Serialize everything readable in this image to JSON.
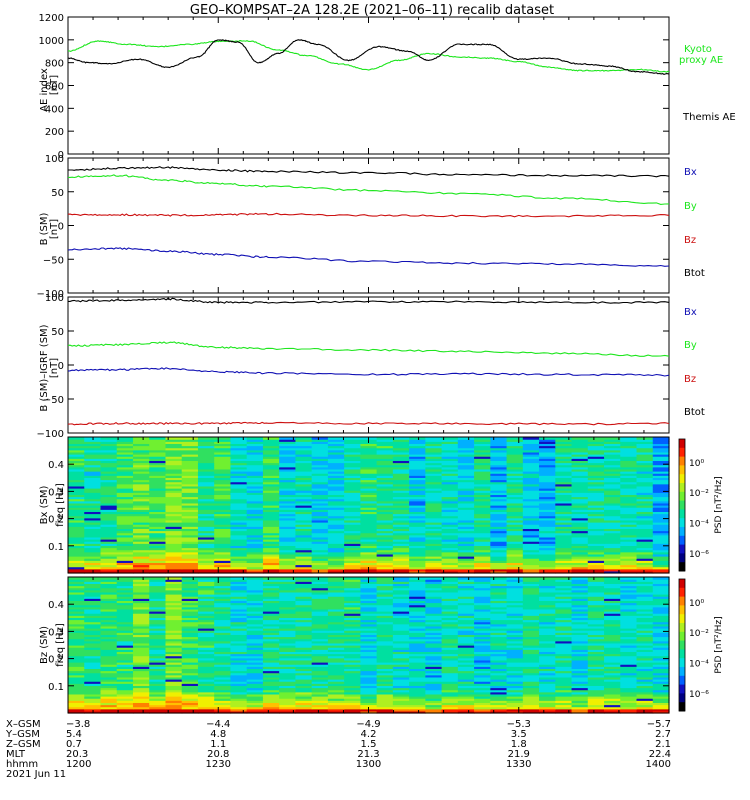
{
  "title": "GEO–KOMPSAT–2A 128.2E (2021–06–11) recalib dataset",
  "colors": {
    "black": "#000000",
    "green": "#1ee61e",
    "red": "#cc1010",
    "blue": "#1010b4"
  },
  "chart_data": [
    {
      "type": "line",
      "ylabel": "AE index [nT]",
      "ylim": [
        0,
        1200
      ],
      "yticks": [
        0,
        200,
        400,
        600,
        800,
        1000,
        1200
      ],
      "xlim_hhmm": [
        "1200",
        "1400"
      ],
      "series": [
        {
          "name": "Kyoto proxy AE",
          "color": "green",
          "x": [
            0,
            6,
            12,
            18,
            24,
            30,
            36,
            42,
            48,
            54,
            60,
            66,
            72,
            78,
            84,
            90,
            96,
            102,
            108,
            114,
            120
          ],
          "y": [
            900,
            990,
            960,
            940,
            960,
            985,
            990,
            910,
            860,
            790,
            740,
            820,
            880,
            850,
            840,
            810,
            760,
            730,
            730,
            740,
            720
          ]
        },
        {
          "name": "Themis AE",
          "color": "black",
          "x": [
            0,
            4,
            8,
            14,
            20,
            26,
            30,
            34,
            38,
            42,
            46,
            50,
            56,
            62,
            68,
            72,
            78,
            84,
            90,
            96,
            102,
            108,
            114,
            120
          ],
          "y": [
            840,
            800,
            790,
            830,
            760,
            850,
            1000,
            980,
            800,
            880,
            1000,
            960,
            820,
            940,
            900,
            820,
            960,
            960,
            830,
            840,
            790,
            770,
            720,
            700
          ]
        }
      ]
    },
    {
      "type": "line",
      "ylabel": "B (SM) [nT]",
      "ylim": [
        -100,
        100
      ],
      "yticks": [
        -100,
        -50,
        0,
        50,
        100
      ],
      "series": [
        {
          "name": "Bx",
          "color": "black",
          "x": [
            0,
            10,
            20,
            30,
            40,
            60,
            80,
            100,
            120
          ],
          "y": [
            82,
            85,
            86,
            82,
            80,
            78,
            75,
            74,
            73
          ]
        },
        {
          "name": "By",
          "color": "green",
          "x": [
            0,
            10,
            20,
            30,
            40,
            60,
            80,
            100,
            120
          ],
          "y": [
            72,
            74,
            67,
            62,
            58,
            52,
            47,
            40,
            32
          ]
        },
        {
          "name": "Bz",
          "color": "red",
          "x": [
            0,
            10,
            20,
            30,
            40,
            60,
            80,
            100,
            120
          ],
          "y": [
            16,
            16,
            15,
            16,
            17,
            15,
            14,
            14,
            15
          ]
        },
        {
          "name": "Btot",
          "color": "blue",
          "x": [
            0,
            10,
            20,
            30,
            40,
            60,
            80,
            100,
            120
          ],
          "y": [
            -36,
            -34,
            -38,
            -43,
            -47,
            -53,
            -56,
            -57,
            -60
          ]
        }
      ]
    },
    {
      "type": "line",
      "ylabel": "B (SM)–IGRF (SM) [nT]",
      "ylim": [
        -100,
        100
      ],
      "yticks": [
        -100,
        -50,
        0,
        50,
        100
      ],
      "series": [
        {
          "name": "Bx",
          "color": "black",
          "x": [
            0,
            10,
            20,
            30,
            40,
            60,
            80,
            100,
            120
          ],
          "y": [
            94,
            95,
            97,
            92,
            92,
            93,
            93,
            92,
            92
          ]
        },
        {
          "name": "By",
          "color": "green",
          "x": [
            0,
            10,
            20,
            30,
            40,
            60,
            80,
            100,
            120
          ],
          "y": [
            28,
            30,
            33,
            26,
            24,
            22,
            20,
            17,
            13
          ]
        },
        {
          "name": "Bz",
          "color": "red",
          "x": [
            0,
            10,
            20,
            30,
            40,
            60,
            80,
            100,
            120
          ],
          "y": [
            -87,
            -86,
            -86,
            -86,
            -85,
            -86,
            -86,
            -87,
            -86
          ]
        },
        {
          "name": "Btot",
          "color": "blue",
          "x": [
            0,
            10,
            20,
            30,
            40,
            60,
            80,
            100,
            120
          ],
          "y": [
            -8,
            -7,
            -5,
            -10,
            -12,
            -14,
            -13,
            -14,
            -15
          ]
        }
      ]
    },
    {
      "type": "heatmap",
      "ylabel": "Bx (SM) freq [Hz]",
      "ylim": [
        0,
        0.5
      ],
      "yticks": [
        0.1,
        0.2,
        0.3,
        0.4
      ],
      "colorbar_label": "PSD [nT²/Hz]",
      "colorbar_ticks": [
        "10⁰",
        "10⁻²",
        "10⁻⁴",
        "10⁻⁶"
      ],
      "colorbar_exponents": [
        0,
        -2,
        -4,
        -6
      ],
      "seed": 7
    },
    {
      "type": "heatmap",
      "ylabel": "Bz (SM) freq [Hz]",
      "ylim": [
        0,
        0.5
      ],
      "yticks": [
        0.1,
        0.2,
        0.3,
        0.4
      ],
      "colorbar_label": "PSD [nT²/Hz]",
      "colorbar_ticks": [
        "10⁰",
        "10⁻²",
        "10⁻⁴",
        "10⁻⁶"
      ],
      "colorbar_exponents": [
        0,
        -2,
        -4,
        -6
      ],
      "seed": 19
    }
  ],
  "legend_panel1": {
    "kyoto_line1": "Kyoto",
    "kyoto_line2": "proxy AE",
    "themis": "Themis AE"
  },
  "legend_b": [
    "Bx",
    "By",
    "Bz",
    "Btot"
  ],
  "axis_labels": {
    "ae": [
      "AE index",
      "[nT]"
    ],
    "b": [
      "B (SM)",
      "[nT]"
    ],
    "dbm": [
      "B (SM)–IGRF (SM)",
      "[nT]"
    ],
    "bx": [
      "Bx (SM)",
      "freq [Hz]"
    ],
    "bz": [
      "Bz (SM)",
      "freq [Hz]"
    ]
  },
  "ephemeris": {
    "labels": [
      "X–GSM",
      "Y–GSM",
      "Z–GSM",
      "MLT",
      "hhmm",
      "2021 Jun 11"
    ],
    "columns": [
      {
        "values": [
          "−3.8",
          "5.4",
          "0.7",
          "20.3",
          "1200"
        ]
      },
      {
        "values": [
          "−4.4",
          "4.8",
          "1.1",
          "20.8",
          "1230"
        ]
      },
      {
        "values": [
          "−4.9",
          "4.2",
          "1.5",
          "21.3",
          "1300"
        ]
      },
      {
        "values": [
          "−5.3",
          "3.5",
          "1.8",
          "21.9",
          "1330"
        ]
      },
      {
        "values": [
          "−5.7",
          "2.7",
          "2.1",
          "22.4",
          "1400"
        ]
      }
    ]
  }
}
